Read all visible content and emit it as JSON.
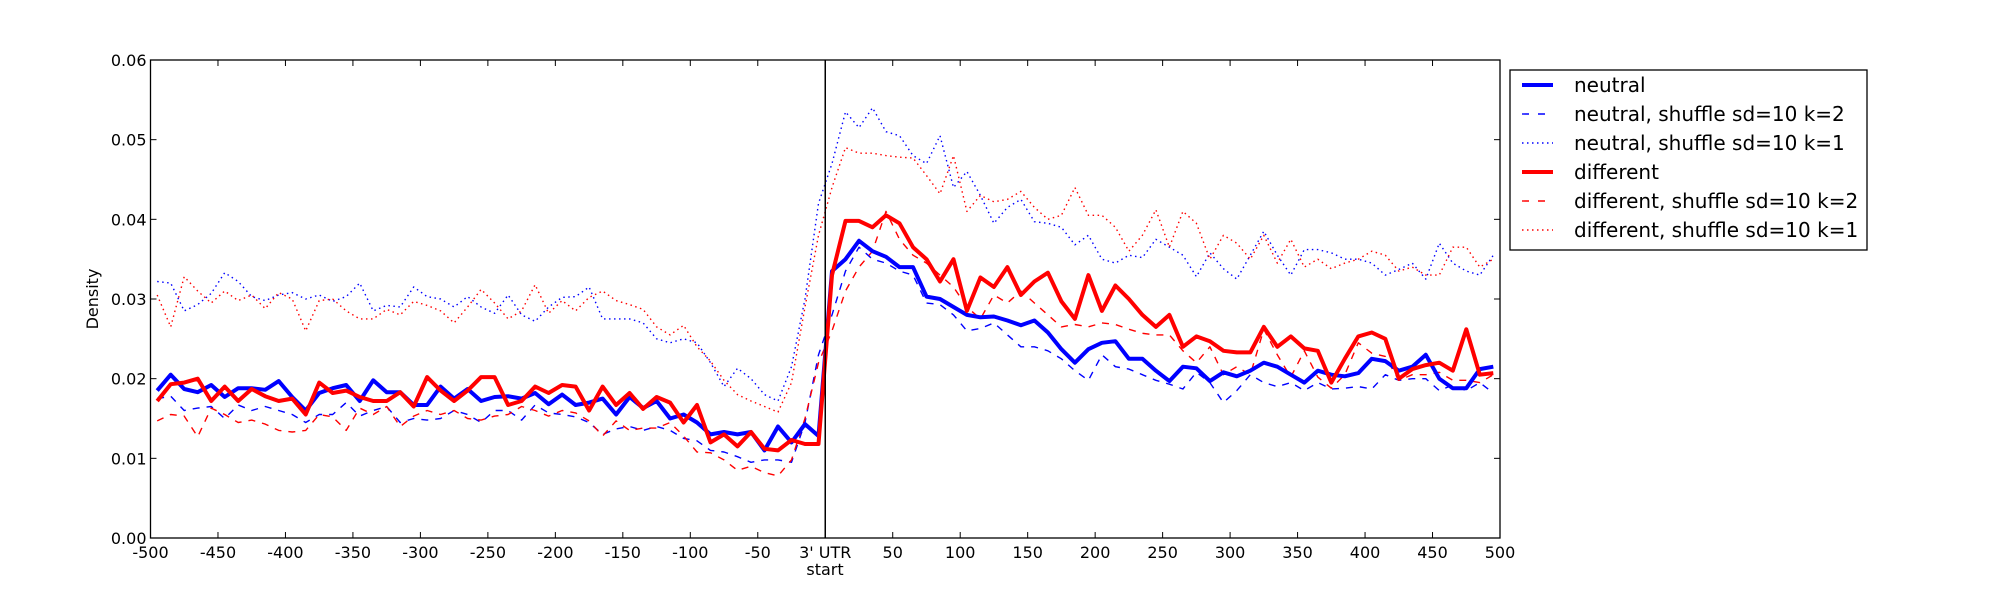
{
  "chart_data": {
    "type": "line",
    "title": "",
    "xlabel": "start",
    "ylabel": "Density",
    "xlim": [
      -500,
      500
    ],
    "ylim": [
      0,
      0.06
    ],
    "x_start": -495,
    "x_step": 10,
    "vertical_marker_x": 0,
    "xticks": [
      -500,
      -450,
      -400,
      -350,
      -300,
      -250,
      -200,
      -150,
      -100,
      -50,
      0,
      50,
      100,
      150,
      200,
      250,
      300,
      350,
      400,
      450,
      500
    ],
    "xtick_labels": [
      "-500",
      "-450",
      "-400",
      "-350",
      "-300",
      "-250",
      "-200",
      "-150",
      "-100",
      "-50",
      "3' UTR",
      "50",
      "100",
      "150",
      "200",
      "250",
      "300",
      "350",
      "400",
      "450",
      "500"
    ],
    "yticks": [
      0,
      0.01,
      0.02,
      0.03,
      0.04,
      0.05,
      0.06
    ],
    "ytick_labels": [
      "0.00",
      "0.01",
      "0.02",
      "0.03",
      "0.04",
      "0.05",
      "0.06"
    ],
    "legend_position": "outside-right-top",
    "grid": false,
    "series": [
      {
        "name": "neutral",
        "color": "#0000ff",
        "style": "solid",
        "values": [
          0.0185,
          0.0205,
          0.0187,
          0.0183,
          0.0192,
          0.0177,
          0.0188,
          0.0188,
          0.0186,
          0.0197,
          0.0177,
          0.016,
          0.0182,
          0.0188,
          0.0192,
          0.0172,
          0.0198,
          0.0183,
          0.0183,
          0.0167,
          0.0167,
          0.019,
          0.0175,
          0.0187,
          0.0172,
          0.0177,
          0.0178,
          0.0175,
          0.0182,
          0.0168,
          0.018,
          0.0167,
          0.017,
          0.0175,
          0.0155,
          0.0177,
          0.0163,
          0.0172,
          0.015,
          0.0155,
          0.0145,
          0.013,
          0.0133,
          0.013,
          0.0133,
          0.011,
          0.014,
          0.012,
          0.0143,
          0.0128,
          0.0335,
          0.035,
          0.0373,
          0.036,
          0.0353,
          0.034,
          0.034,
          0.0303,
          0.03,
          0.029,
          0.028,
          0.0277,
          0.0278,
          0.0273,
          0.0267,
          0.0273,
          0.0258,
          0.0237,
          0.022,
          0.0237,
          0.0245,
          0.0247,
          0.0225,
          0.0225,
          0.021,
          0.0197,
          0.0215,
          0.0213,
          0.0197,
          0.0208,
          0.0203,
          0.021,
          0.022,
          0.0215,
          0.0205,
          0.0195,
          0.021,
          0.0205,
          0.0203,
          0.0207,
          0.0225,
          0.0222,
          0.021,
          0.0215,
          0.023,
          0.02,
          0.0188,
          0.0188,
          0.0212,
          0.0215
        ]
      },
      {
        "name": "neutral, shuffle sd=10 k=2",
        "color": "#0000ff",
        "style": "dashed",
        "values": [
          0.0175,
          0.0178,
          0.016,
          0.0163,
          0.0165,
          0.015,
          0.0167,
          0.016,
          0.0165,
          0.016,
          0.0155,
          0.0145,
          0.0155,
          0.0155,
          0.017,
          0.0153,
          0.016,
          0.0165,
          0.0145,
          0.015,
          0.0148,
          0.015,
          0.016,
          0.0155,
          0.0145,
          0.016,
          0.016,
          0.0148,
          0.0167,
          0.0157,
          0.0155,
          0.0152,
          0.0145,
          0.013,
          0.0137,
          0.014,
          0.0135,
          0.014,
          0.0135,
          0.0125,
          0.0122,
          0.011,
          0.0108,
          0.0102,
          0.0095,
          0.0098,
          0.0098,
          0.0095,
          0.0145,
          0.023,
          0.028,
          0.0335,
          0.0365,
          0.035,
          0.0345,
          0.0335,
          0.033,
          0.0295,
          0.0293,
          0.028,
          0.026,
          0.0263,
          0.027,
          0.0255,
          0.024,
          0.024,
          0.0235,
          0.0225,
          0.021,
          0.0198,
          0.023,
          0.0215,
          0.0212,
          0.0205,
          0.0198,
          0.0193,
          0.0187,
          0.0208,
          0.0195,
          0.017,
          0.0185,
          0.0205,
          0.0195,
          0.019,
          0.0195,
          0.0185,
          0.0195,
          0.0187,
          0.0188,
          0.019,
          0.0187,
          0.0205,
          0.0198,
          0.02,
          0.02,
          0.0185,
          0.0192,
          0.0185,
          0.0195,
          0.0182
        ]
      },
      {
        "name": "neutral, shuffle sd=10 k=1",
        "color": "#0000ff",
        "style": "dotted",
        "values": [
          0.0322,
          0.032,
          0.0285,
          0.0293,
          0.0307,
          0.0333,
          0.0322,
          0.0303,
          0.0298,
          0.0305,
          0.0308,
          0.03,
          0.0305,
          0.0297,
          0.0303,
          0.032,
          0.0285,
          0.0292,
          0.029,
          0.0315,
          0.0303,
          0.03,
          0.029,
          0.0303,
          0.029,
          0.0282,
          0.0305,
          0.028,
          0.0272,
          0.029,
          0.0302,
          0.0303,
          0.0315,
          0.0275,
          0.0275,
          0.0275,
          0.027,
          0.025,
          0.0245,
          0.025,
          0.0245,
          0.022,
          0.019,
          0.0213,
          0.02,
          0.018,
          0.0172,
          0.0215,
          0.03,
          0.042,
          0.047,
          0.0535,
          0.0515,
          0.054,
          0.051,
          0.0505,
          0.048,
          0.047,
          0.0505,
          0.044,
          0.046,
          0.043,
          0.0395,
          0.0415,
          0.0425,
          0.0397,
          0.0395,
          0.039,
          0.0368,
          0.038,
          0.035,
          0.0345,
          0.0355,
          0.0352,
          0.0375,
          0.0365,
          0.0355,
          0.0328,
          0.0358,
          0.0338,
          0.0325,
          0.0355,
          0.0385,
          0.0355,
          0.033,
          0.0362,
          0.0362,
          0.0358,
          0.035,
          0.035,
          0.0345,
          0.033,
          0.0337,
          0.0345,
          0.0325,
          0.037,
          0.0345,
          0.0335,
          0.033,
          0.0355
        ]
      },
      {
        "name": "different",
        "color": "#ff0000",
        "style": "solid",
        "values": [
          0.0172,
          0.0193,
          0.0195,
          0.02,
          0.0172,
          0.019,
          0.0172,
          0.0187,
          0.0178,
          0.0172,
          0.0175,
          0.0155,
          0.0195,
          0.0182,
          0.0185,
          0.0177,
          0.0172,
          0.0172,
          0.0183,
          0.0165,
          0.0202,
          0.0185,
          0.0172,
          0.0185,
          0.0202,
          0.0202,
          0.0167,
          0.0172,
          0.019,
          0.0182,
          0.0192,
          0.019,
          0.016,
          0.019,
          0.0167,
          0.0182,
          0.0162,
          0.0177,
          0.017,
          0.0145,
          0.0167,
          0.012,
          0.013,
          0.0115,
          0.0133,
          0.0112,
          0.011,
          0.0123,
          0.0118,
          0.0118,
          0.033,
          0.0398,
          0.0398,
          0.039,
          0.0405,
          0.0395,
          0.0365,
          0.035,
          0.0322,
          0.035,
          0.0285,
          0.0327,
          0.0315,
          0.034,
          0.0305,
          0.0322,
          0.0333,
          0.0297,
          0.0275,
          0.033,
          0.0285,
          0.0317,
          0.03,
          0.028,
          0.0265,
          0.028,
          0.024,
          0.0253,
          0.0247,
          0.0235,
          0.0233,
          0.0233,
          0.0265,
          0.024,
          0.0253,
          0.0238,
          0.0235,
          0.0195,
          0.0225,
          0.0253,
          0.0258,
          0.025,
          0.02,
          0.0212,
          0.0217,
          0.022,
          0.021,
          0.0262,
          0.0205,
          0.0207
        ]
      },
      {
        "name": "different, shuffle sd=10 k=2",
        "color": "#ff0000",
        "style": "dashed",
        "values": [
          0.0147,
          0.0155,
          0.0153,
          0.0127,
          0.0163,
          0.0155,
          0.0145,
          0.0148,
          0.0143,
          0.0135,
          0.0133,
          0.0135,
          0.0155,
          0.0152,
          0.0135,
          0.0163,
          0.0155,
          0.0165,
          0.014,
          0.0153,
          0.016,
          0.0155,
          0.016,
          0.015,
          0.0148,
          0.0153,
          0.0155,
          0.0165,
          0.016,
          0.0153,
          0.016,
          0.0157,
          0.0147,
          0.0128,
          0.0147,
          0.0135,
          0.0138,
          0.0138,
          0.0145,
          0.0128,
          0.0108,
          0.0107,
          0.0098,
          0.0085,
          0.009,
          0.0082,
          0.0078,
          0.0098,
          0.015,
          0.022,
          0.026,
          0.031,
          0.034,
          0.036,
          0.041,
          0.0375,
          0.0355,
          0.0345,
          0.033,
          0.0315,
          0.029,
          0.0275,
          0.0305,
          0.0295,
          0.031,
          0.0295,
          0.028,
          0.0265,
          0.0268,
          0.0265,
          0.027,
          0.0268,
          0.0262,
          0.0257,
          0.0255,
          0.0255,
          0.0235,
          0.022,
          0.024,
          0.0205,
          0.0215,
          0.0205,
          0.0262,
          0.023,
          0.0202,
          0.0235,
          0.0202,
          0.0188,
          0.0205,
          0.0245,
          0.0232,
          0.0228,
          0.0198,
          0.0205,
          0.0205,
          0.0208,
          0.0198,
          0.0198,
          0.0195,
          0.0205
        ]
      },
      {
        "name": "different, shuffle sd=10 k=1",
        "color": "#ff0000",
        "style": "dotted",
        "values": [
          0.0305,
          0.0265,
          0.0328,
          0.031,
          0.0295,
          0.031,
          0.0298,
          0.0305,
          0.0288,
          0.0308,
          0.03,
          0.026,
          0.0298,
          0.03,
          0.0285,
          0.0275,
          0.0275,
          0.0287,
          0.028,
          0.0297,
          0.0292,
          0.0285,
          0.027,
          0.029,
          0.0312,
          0.0295,
          0.0275,
          0.0285,
          0.0318,
          0.0282,
          0.0298,
          0.0285,
          0.0302,
          0.031,
          0.0298,
          0.0293,
          0.0287,
          0.0265,
          0.0255,
          0.0267,
          0.024,
          0.0222,
          0.0198,
          0.018,
          0.0172,
          0.0165,
          0.0158,
          0.0195,
          0.029,
          0.038,
          0.044,
          0.049,
          0.0483,
          0.0483,
          0.048,
          0.0478,
          0.0477,
          0.0455,
          0.0432,
          0.048,
          0.041,
          0.043,
          0.0422,
          0.0425,
          0.0435,
          0.0415,
          0.04,
          0.0405,
          0.044,
          0.0405,
          0.0405,
          0.039,
          0.036,
          0.038,
          0.0412,
          0.0365,
          0.041,
          0.0395,
          0.035,
          0.038,
          0.037,
          0.035,
          0.038,
          0.0345,
          0.0375,
          0.034,
          0.035,
          0.0338,
          0.0345,
          0.035,
          0.036,
          0.0355,
          0.0335,
          0.034,
          0.033,
          0.033,
          0.0365,
          0.0365,
          0.034,
          0.035
        ]
      }
    ]
  }
}
